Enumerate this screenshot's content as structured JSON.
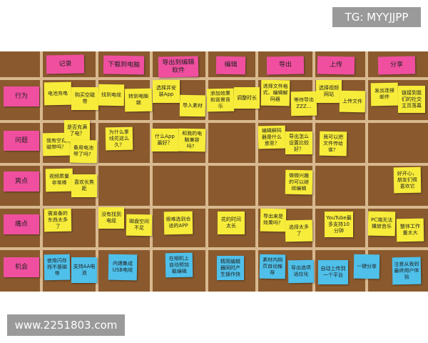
{
  "watermarks": {
    "top": "TG: MYYJJPP",
    "bottom": "www.2251803.com"
  },
  "columns": [
    "记录",
    "下载到电脑",
    "导出到编辑软件",
    "编辑",
    "导出",
    "上传",
    "分享"
  ],
  "rows": [
    {
      "label": "行为",
      "notes": [
        "电池充电",
        "购买空磁带",
        "找到电缆",
        "转到电脑端",
        "选择并安装App",
        "导入素材",
        "添加效果和背景音乐",
        "调整时长",
        "选择文件格式、编辑解码器",
        "等待导出 ZZZ…",
        "选择视频网站",
        "上传文件",
        "发出连接邮件",
        "链接到我们的社交主页落幕"
      ]
    },
    {
      "label": "问题",
      "notes": [
        "我有空白磁带吗？",
        "是否充满了电？",
        "备用电池带了吗？",
        "为什么拿线花这么久？",
        "什么App最好？",
        "和我的电脑兼容吗？",
        "编辑解码器是什么意思？",
        "导出怎么设置比较好？",
        "我可以把文件传给谁？"
      ]
    },
    {
      "label": "爽点",
      "notes": [
        "视频质量非常棒",
        "喜欢长焦距",
        "做微兴趣的可以继续编辑",
        "好开心，朋友们很喜欢它"
      ]
    },
    {
      "label": "痛点",
      "notes": [
        "需准备的东西太多了",
        "没有找到电缆",
        "磁盘空间不足",
        "很难选到合适的APP",
        "花的时间太长",
        "导出来是效果吗？",
        "选择太多了",
        "YouTube最多支持10分钟",
        "PC端无法播放音乐",
        "整体工作量太大"
      ]
    },
    {
      "label": "机会",
      "notes": [
        "使用闪存而不是磁带",
        "支持AA电池",
        "内建集成USB电缆",
        "在相机上自动预加载编辑",
        "精简编辑器同时产生操作快",
        "素材内网页自动推荐",
        "导出选项适应化",
        "自动上传到一个平台",
        "一键分享",
        "注意从我到最终用户体验"
      ]
    }
  ]
}
